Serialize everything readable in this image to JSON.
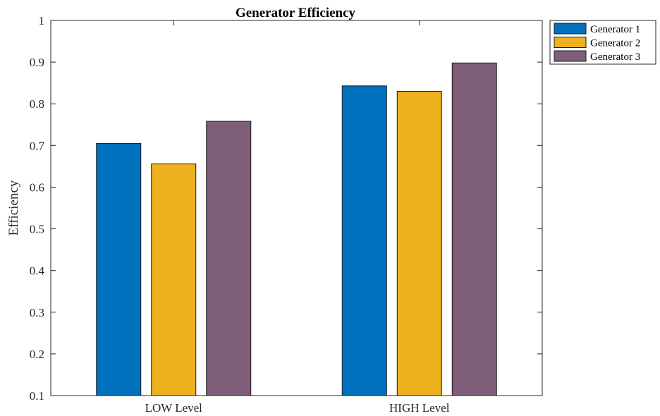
{
  "chart_data": {
    "type": "bar",
    "title": "Generator Efficiency",
    "xlabel": "",
    "ylabel": "Efficiency",
    "ylim": [
      0.1,
      1
    ],
    "yticks": [
      "0.1",
      "0.2",
      "0.3",
      "0.4",
      "0.5",
      "0.6",
      "0.7",
      "0.8",
      "0.9",
      "1"
    ],
    "categories": [
      "LOW Level",
      "HIGH Level"
    ],
    "series": [
      {
        "name": "Generator 1",
        "color": "#0072BD",
        "values": [
          0.705,
          0.843
        ]
      },
      {
        "name": "Generator 2",
        "color": "#EDB120",
        "values": [
          0.656,
          0.83
        ]
      },
      {
        "name": "Generator 3",
        "color": "#7E5E78",
        "values": [
          0.758,
          0.898
        ]
      }
    ],
    "grid": false,
    "legend_position": "outside-top-right"
  }
}
